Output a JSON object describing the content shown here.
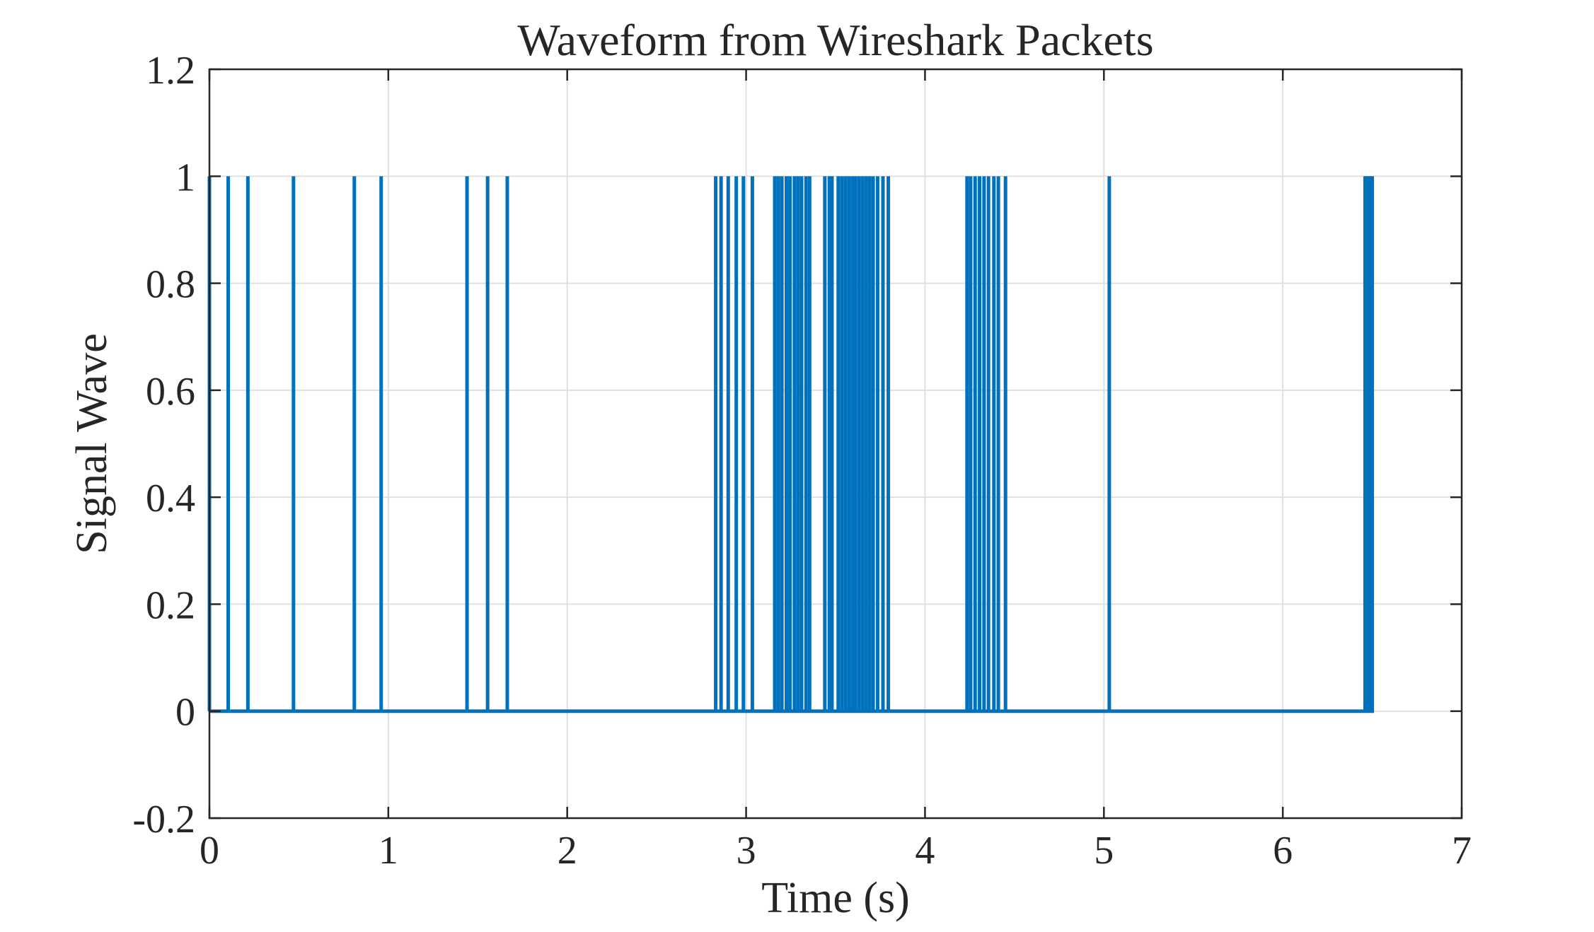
{
  "chart_data": {
    "type": "line",
    "title": "Waveform from Wireshark Packets",
    "xlabel": "Time (s)",
    "ylabel": "Signal Wave",
    "xlim": [
      0,
      7
    ],
    "ylim": [
      -0.2,
      1.2
    ],
    "xticks": [
      0,
      1,
      2,
      3,
      4,
      5,
      6,
      7
    ],
    "xtick_labels": [
      "0",
      "1",
      "2",
      "3",
      "4",
      "5",
      "6",
      "7"
    ],
    "yticks": [
      -0.2,
      0,
      0.2,
      0.4,
      0.6,
      0.8,
      1,
      1.2
    ],
    "ytick_labels": [
      "-0.2",
      "0",
      "0.2",
      "0.4",
      "0.6",
      "0.8",
      "1",
      "1.2"
    ],
    "grid": true,
    "line_color": "#0072BD",
    "series": [
      {
        "style": "pulse",
        "low": 0,
        "high": 1,
        "end": 6.51,
        "pulses": [
          0.0,
          0.105,
          0.215,
          0.47,
          0.81,
          0.96,
          1.44,
          1.555,
          1.665,
          2.83,
          2.86,
          2.9,
          2.945,
          2.985,
          3.035,
          3.16,
          3.18,
          3.2,
          3.225,
          3.245,
          3.27,
          3.29,
          3.31,
          3.335,
          3.355,
          3.44,
          3.465,
          3.48,
          3.515,
          3.535,
          3.555,
          3.575,
          3.595,
          3.61,
          3.63,
          3.65,
          3.67,
          3.69,
          3.71,
          3.735,
          3.765,
          3.795,
          4.235,
          4.255,
          4.28,
          4.305,
          4.33,
          4.355,
          4.385,
          4.41,
          4.45,
          5.03,
          6.46,
          6.47,
          6.48,
          6.49,
          6.5
        ]
      }
    ]
  }
}
